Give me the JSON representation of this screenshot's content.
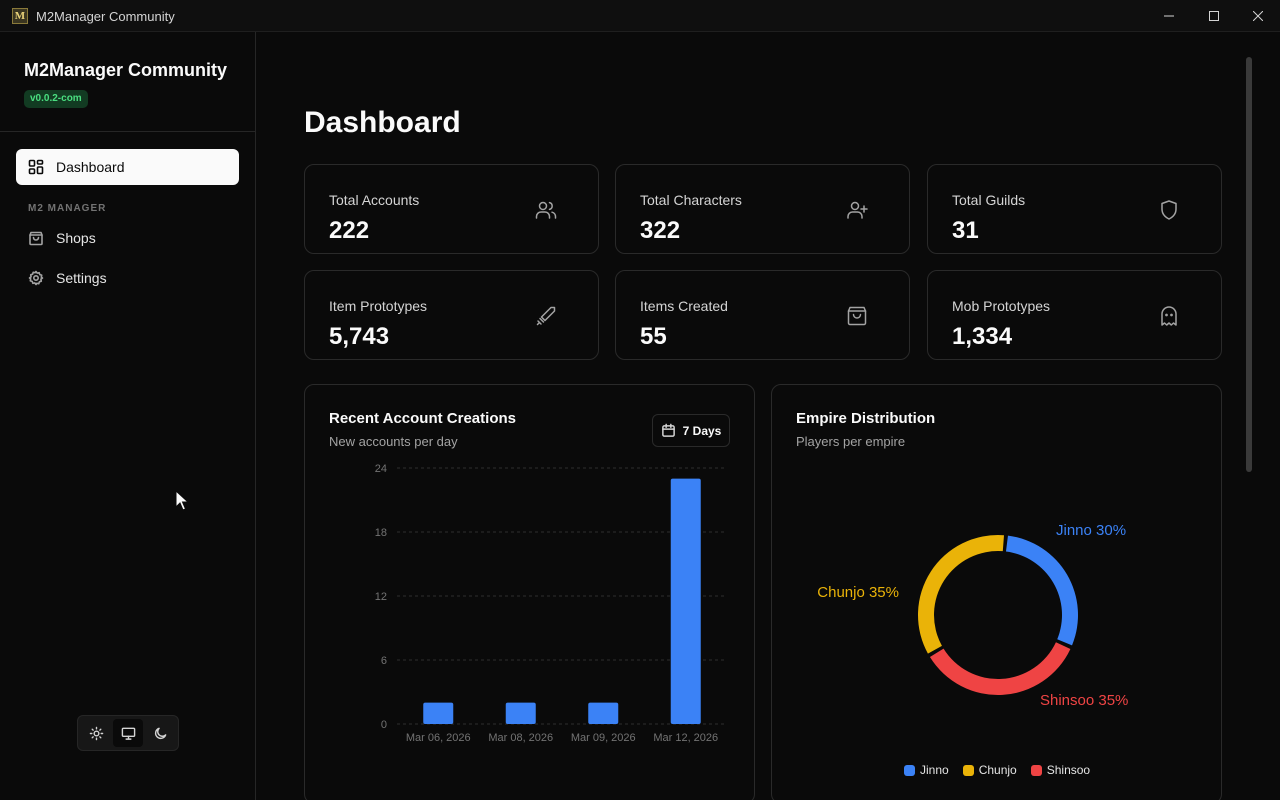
{
  "window": {
    "title": "M2Manager Community",
    "icon_glyph": "M"
  },
  "sidebar": {
    "brand": "M2Manager Community",
    "version": "v0.0.2-com",
    "primary": {
      "label": "Dashboard",
      "icon": "layout-grid-icon"
    },
    "group_label": "M2 MANAGER",
    "items": [
      {
        "label": "Shops",
        "icon": "shopping-bag-icon"
      },
      {
        "label": "Settings",
        "icon": "gear-icon"
      }
    ],
    "theme_options": [
      "light",
      "system",
      "dark"
    ],
    "theme_selected": "system"
  },
  "page": {
    "title": "Dashboard"
  },
  "stats": [
    {
      "label": "Total Accounts",
      "value": "222",
      "icon": "users-icon"
    },
    {
      "label": "Total Characters",
      "value": "322",
      "icon": "user-plus-icon"
    },
    {
      "label": "Total Guilds",
      "value": "31",
      "icon": "shield-icon"
    },
    {
      "label": "Item Prototypes",
      "value": "5,743",
      "icon": "sword-icon"
    },
    {
      "label": "Items Created",
      "value": "55",
      "icon": "shopping-bag-icon"
    },
    {
      "label": "Mob Prototypes",
      "value": "1,334",
      "icon": "ghost-icon"
    }
  ],
  "account_panel": {
    "title": "Recent Account Creations",
    "subtitle": "New accounts per day",
    "range_label": "7 Days"
  },
  "empire_panel": {
    "title": "Empire Distribution",
    "subtitle": "Players per empire"
  },
  "colors": {
    "accent_blue": "#3b82f6",
    "accent_yellow": "#eab308",
    "accent_red": "#ef4444",
    "version_green": "#4ade80"
  },
  "chart_data": [
    {
      "type": "bar",
      "categories": [
        "Mar 06, 2026",
        "Mar 08, 2026",
        "Mar 09, 2026",
        "Mar 12, 2026"
      ],
      "values": [
        2,
        2,
        2,
        23
      ],
      "yticks": [
        "0",
        "6",
        "12",
        "18",
        "24"
      ],
      "ylim": [
        0,
        24
      ],
      "grid": true,
      "color": "#3b82f6"
    },
    {
      "type": "pie",
      "variant": "donut",
      "slices": [
        {
          "label": "Jinno",
          "value": 30,
          "display": "Jinno 30%",
          "color": "#3b82f6"
        },
        {
          "label": "Shinsoo",
          "value": 35,
          "display": "Shinsoo 35%",
          "color": "#ef4444"
        },
        {
          "label": "Chunjo",
          "value": 35,
          "display": "Chunjo 35%",
          "color": "#eab308"
        }
      ],
      "legend": [
        "Jinno",
        "Chunjo",
        "Shinsoo"
      ],
      "legend_position": "bottom"
    }
  ]
}
